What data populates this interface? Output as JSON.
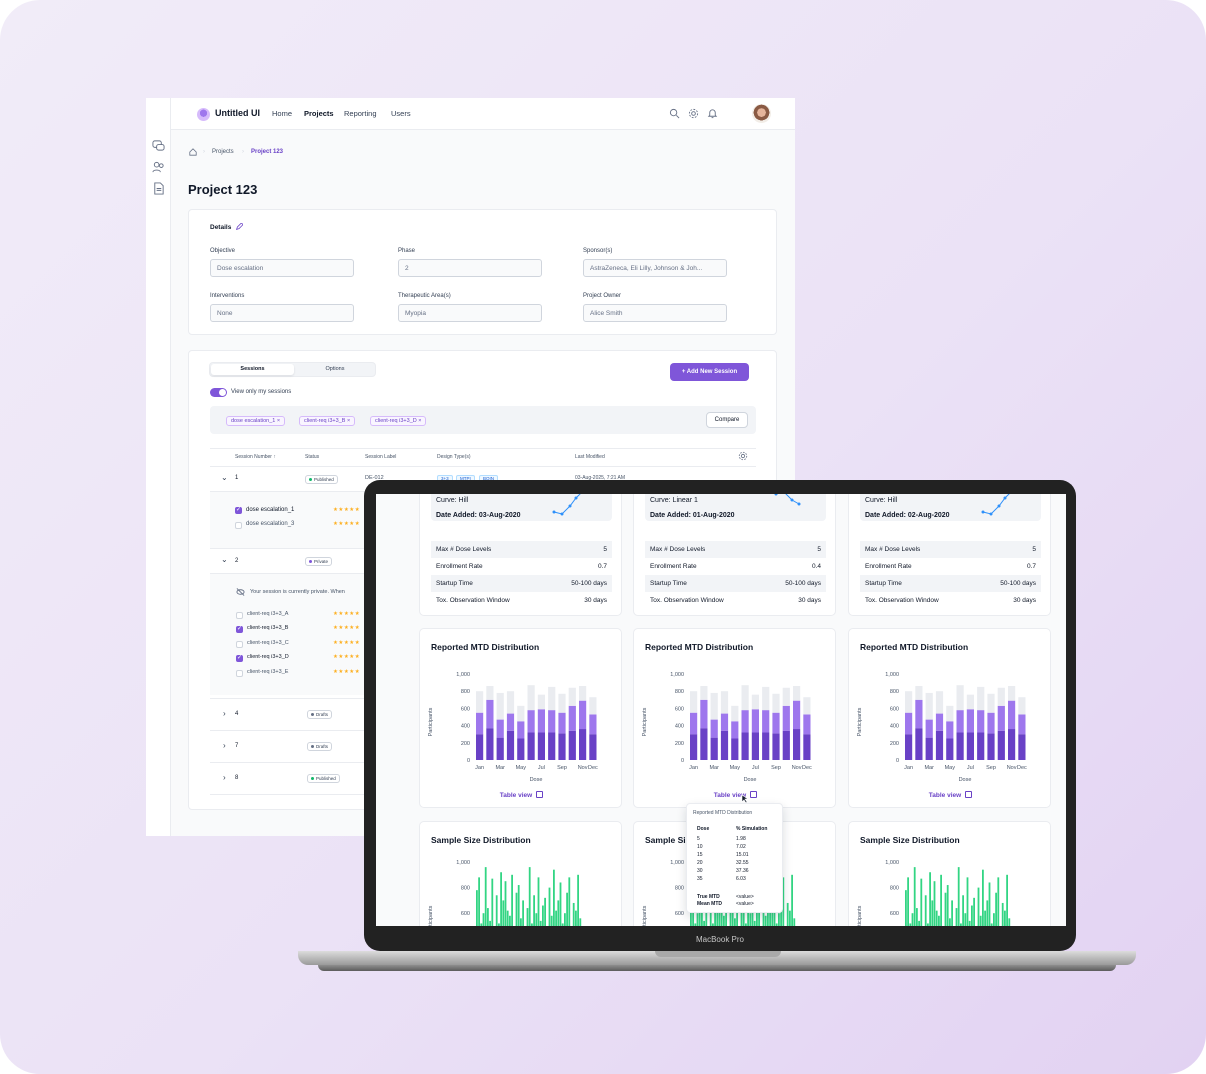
{
  "app": {
    "brand": "Untitled UI",
    "nav": [
      "Home",
      "Projects",
      "Reporting",
      "Users"
    ],
    "active_nav": "Projects"
  },
  "breadcrumb": [
    "Projects",
    "Project 123"
  ],
  "page_title": "Project 123",
  "details": {
    "heading": "Details",
    "fields": [
      {
        "label": "Objective",
        "value": "Dose escalation"
      },
      {
        "label": "Phase",
        "value": "2"
      },
      {
        "label": "Sponsor(s)",
        "value": "AstraZeneca, Eli Lilly, Johnson & Joh..."
      },
      {
        "label": "Interventions",
        "value": "None"
      },
      {
        "label": "Therapeutic Area(s)",
        "value": "Myopia"
      },
      {
        "label": "Project Owner",
        "value": "Alice Smith"
      }
    ]
  },
  "sessions": {
    "tabs": [
      "Sessions",
      "Options"
    ],
    "add_button": "+ Add New Session",
    "toggle_label": "View only my sessions",
    "chips": [
      "dose escalation_1",
      "client-req i3+3_B",
      "client-req i3+3_D"
    ],
    "compare_button": "Compare",
    "columns": [
      "Session Number ↑",
      "Status",
      "Session Label",
      "Design Type(s)",
      "Last Modified"
    ],
    "rows": [
      {
        "num": "1",
        "status": "Published",
        "status_color": "#12b76a",
        "label": "DE-012",
        "designs": [
          "3+3",
          "MTPI",
          "BOIN"
        ],
        "modified": "03-Aug-2025, 7:21 AM",
        "children": [
          {
            "name": "dose escalation_1",
            "checked": true,
            "stars": "★★★★★"
          },
          {
            "name": "dose escalation_3",
            "checked": false,
            "stars": "★★★★★"
          }
        ]
      },
      {
        "num": "2",
        "status": "Private",
        "status_color": "#7f56d9",
        "note": "Your session is currently private. When",
        "children": [
          {
            "name": "client-req i3+3_A",
            "checked": false,
            "stars": "★★★★★"
          },
          {
            "name": "client-req i3+3_B",
            "checked": true,
            "stars": "★★★★★"
          },
          {
            "name": "client-req i3+3_C",
            "checked": false,
            "stars": "★★★★★"
          },
          {
            "name": "client-req i3+3_D",
            "checked": true,
            "stars": "★★★★★"
          },
          {
            "name": "client-req i3+3_E",
            "checked": false,
            "stars": "★★★★★"
          }
        ]
      },
      {
        "num": "4",
        "status": "Drafts",
        "status_color": "#667085"
      },
      {
        "num": "7",
        "status": "Drafts",
        "status_color": "#667085"
      },
      {
        "num": "8",
        "status": "Published",
        "status_color": "#12b76a"
      }
    ]
  },
  "laptop": {
    "model_label": "MacBook Pro",
    "columns": [
      {
        "curve": "Curve: Hill",
        "date": "Date Added: 03-Aug-2020",
        "params": [
          [
            "Max # Dose Levels",
            "5"
          ],
          [
            "Enrollment Rate",
            "0.7"
          ],
          [
            "Startup Time",
            "50-100 days"
          ],
          [
            "Tox. Observation Window",
            "30 days"
          ]
        ]
      },
      {
        "curve": "Curve: Linear 1",
        "date": "Date Added: 01-Aug-2020",
        "params": [
          [
            "Max # Dose Levels",
            "5"
          ],
          [
            "Enrollment Rate",
            "0.4"
          ],
          [
            "Startup Time",
            "50-100 days"
          ],
          [
            "Tox. Observation Window",
            "30 days"
          ]
        ]
      },
      {
        "curve": "Curve: Hill",
        "date": "Date Added: 02-Aug-2020",
        "params": [
          [
            "Max # Dose Levels",
            "5"
          ],
          [
            "Enrollment Rate",
            "0.7"
          ],
          [
            "Startup Time",
            "50-100 days"
          ],
          [
            "Tox. Observation Window",
            "30 days"
          ]
        ]
      }
    ],
    "mtd_title": "Reported MTD Distribution",
    "sample_title": "Sample Size Distribution",
    "table_view": "Table view",
    "tooltip": {
      "title": "Reported MTD Distribution",
      "headers": [
        "Dose",
        "% Simulation"
      ],
      "rows": [
        [
          "5",
          "1.98"
        ],
        [
          "10",
          "7.02"
        ],
        [
          "15",
          "15.01"
        ],
        [
          "20",
          "32.55"
        ],
        [
          "30",
          "37.36"
        ],
        [
          "35",
          "6.03"
        ]
      ],
      "footer": [
        [
          "True MTD",
          "<value>"
        ],
        [
          "Mean MTD",
          "<value>"
        ]
      ]
    }
  },
  "chart_data": [
    {
      "type": "bar",
      "title": "Reported MTD Distribution",
      "xlabel": "Dose",
      "ylabel": "Participants",
      "ylim": [
        0,
        1000
      ],
      "yticks": [
        "0",
        "200",
        "400",
        "600",
        "800",
        "1,000"
      ],
      "categories": [
        "Jan",
        "Feb",
        "Mar",
        "Apr",
        "May",
        "Jun",
        "Jul",
        "Aug",
        "Sep",
        "Oct",
        "Nov",
        "Dec"
      ],
      "tick_labels": [
        "Jan",
        "Mar",
        "May",
        "Jul",
        "Sep",
        "Nov",
        "Dec"
      ],
      "stacked": true,
      "series": [
        {
          "color": "#6941c6",
          "values": [
            300,
            370,
            260,
            340,
            250,
            320,
            320,
            320,
            310,
            340,
            360,
            300
          ]
        },
        {
          "color": "#9e77ed",
          "values": [
            250,
            330,
            210,
            200,
            200,
            260,
            270,
            260,
            240,
            290,
            330,
            230
          ]
        },
        {
          "color": "#eaecf0",
          "values": [
            250,
            160,
            310,
            260,
            180,
            290,
            170,
            270,
            220,
            210,
            170,
            200
          ]
        }
      ]
    },
    {
      "type": "bar",
      "title": "Sample Size Distribution",
      "ylabel": "Participants",
      "ylim": [
        0,
        1000
      ],
      "yticks": [
        "400",
        "600",
        "800",
        "1,000"
      ],
      "values": [
        780,
        880,
        520,
        600,
        960,
        640,
        540,
        870,
        480,
        740,
        520,
        920,
        700,
        850,
        620,
        580,
        900,
        450,
        760,
        820,
        560,
        700,
        480,
        640,
        960,
        520,
        740,
        600,
        880,
        540,
        660,
        720,
        460,
        800,
        580,
        940,
        620,
        700,
        840,
        520,
        600,
        760,
        880,
        500,
        680,
        620,
        900,
        560
      ]
    }
  ]
}
